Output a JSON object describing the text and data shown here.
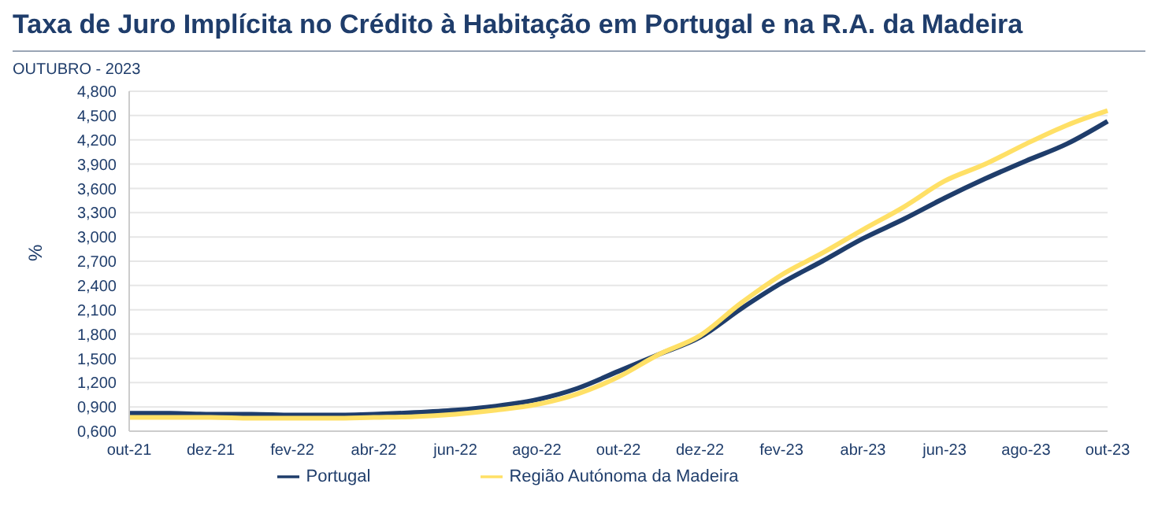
{
  "chart_data": {
    "type": "line",
    "title": "Taxa de Juro Implícita no Crédito à Habitação em Portugal e na R.A. da Madeira",
    "subtitle": "OUTUBRO - 2023",
    "ylabel": "%",
    "categories": [
      "out-21",
      null,
      "dez-21",
      null,
      "fev-22",
      null,
      "abr-22",
      null,
      "jun-22",
      null,
      "ago-22",
      null,
      "out-22",
      null,
      "dez-22",
      null,
      "fev-23",
      null,
      "abr-23",
      null,
      "jun-23",
      null,
      "ago-23",
      null,
      "out-23"
    ],
    "series": [
      {
        "name": "Portugal",
        "color": "#1f3d6b",
        "values": [
          0.82,
          0.82,
          0.81,
          0.81,
          0.8,
          0.8,
          0.81,
          0.83,
          0.86,
          0.91,
          0.99,
          1.13,
          1.34,
          1.55,
          1.76,
          2.11,
          2.43,
          2.7,
          2.98,
          3.22,
          3.48,
          3.72,
          3.94,
          4.15,
          4.43
        ]
      },
      {
        "name": "Região Autónoma da Madeira",
        "color": "#ffe066",
        "values": [
          0.77,
          0.77,
          0.77,
          0.76,
          0.76,
          0.76,
          0.77,
          0.78,
          0.81,
          0.86,
          0.93,
          1.06,
          1.27,
          1.55,
          1.78,
          2.18,
          2.53,
          2.8,
          3.09,
          3.37,
          3.69,
          3.9,
          4.15,
          4.38,
          4.56
        ]
      }
    ],
    "ylim": [
      0.6,
      4.8
    ],
    "yticks": [
      {
        "value": 0.6,
        "label": "0,600"
      },
      {
        "value": 0.9,
        "label": "0,900"
      },
      {
        "value": 1.2,
        "label": "1,200"
      },
      {
        "value": 1.5,
        "label": "1,500"
      },
      {
        "value": 1.8,
        "label": "1,800"
      },
      {
        "value": 2.1,
        "label": "2,100"
      },
      {
        "value": 2.4,
        "label": "2,400"
      },
      {
        "value": 2.7,
        "label": "2,700"
      },
      {
        "value": 3.0,
        "label": "3,000"
      },
      {
        "value": 3.3,
        "label": "3,300"
      },
      {
        "value": 3.6,
        "label": "3,600"
      },
      {
        "value": 3.9,
        "label": "3,900"
      },
      {
        "value": 4.2,
        "label": "4,200"
      },
      {
        "value": 4.5,
        "label": "4,500"
      },
      {
        "value": 4.8,
        "label": "4,800"
      }
    ],
    "grid": "y",
    "legend": "bottom",
    "marker": "none",
    "line_style": "solid"
  }
}
